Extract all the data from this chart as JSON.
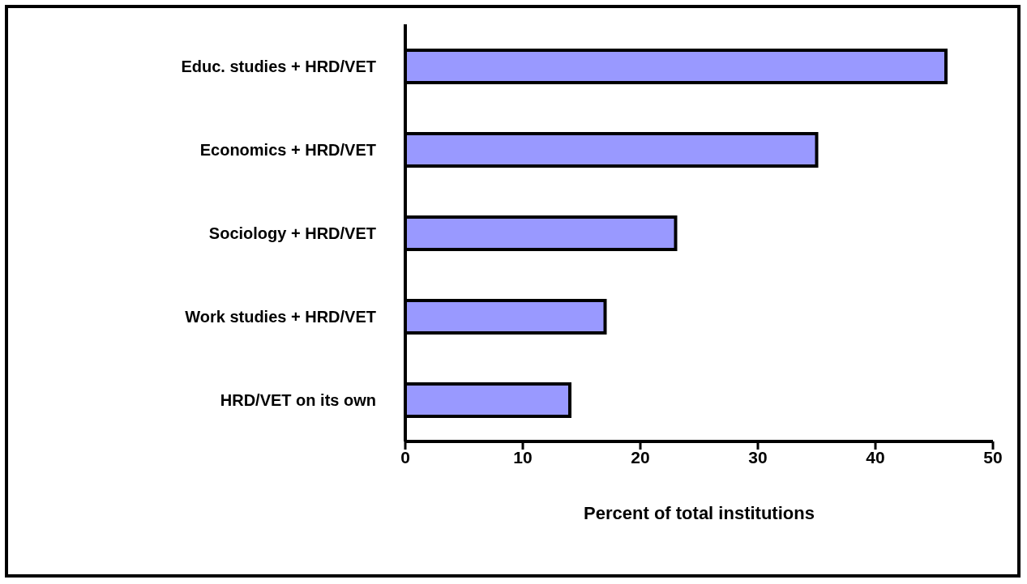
{
  "chart_data": {
    "type": "bar",
    "orientation": "horizontal",
    "xlabel": "Percent of total institutions",
    "categories": [
      "Educ. studies + HRD/VET",
      "Economics + HRD/VET",
      "Sociology + HRD/VET",
      "Work studies + HRD/VET",
      "HRD/VET on its own"
    ],
    "values": [
      46,
      35,
      23,
      17,
      14
    ],
    "color": "#9999ff",
    "xlim": [
      0,
      50
    ],
    "xticks": [
      0,
      10,
      20,
      30,
      40,
      50
    ],
    "grid": false,
    "legend": false
  }
}
